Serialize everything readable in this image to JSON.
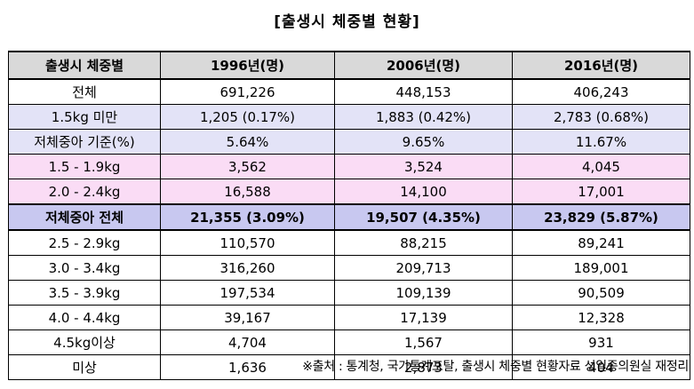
{
  "title": "[출생시 체중별 현황]",
  "table": {
    "headers": [
      "출생시 체중별",
      "1996년(명)",
      "2006년(명)",
      "2016년(명)"
    ],
    "rows": [
      {
        "label": "전체",
        "values": [
          "691,226",
          "448,153",
          "406,243"
        ],
        "style": "plain"
      },
      {
        "label": "1.5kg 미만",
        "values": [
          "1,205 (0.17%)",
          "1,883 (0.42%)",
          "2,783 (0.68%)"
        ],
        "style": "lav"
      },
      {
        "label": "저체중아 기준(%)",
        "values": [
          "5.64%",
          "9.65%",
          "11.67%"
        ],
        "style": "lav"
      },
      {
        "label": "1.5 - 1.9kg",
        "values": [
          "3,562",
          "3,524",
          "4,045"
        ],
        "style": "pink"
      },
      {
        "label": "2.0 - 2.4kg",
        "values": [
          "16,588",
          "14,100",
          "17,001"
        ],
        "style": "pink"
      },
      {
        "label": "저체중아 전체",
        "values": [
          "21,355 (3.09%)",
          "19,507 (4.35%)",
          "23,829 (5.87%)"
        ],
        "style": "total"
      },
      {
        "label": "2.5 - 2.9kg",
        "values": [
          "110,570",
          "88,215",
          "89,241"
        ],
        "style": "plain"
      },
      {
        "label": "3.0 - 3.4kg",
        "values": [
          "316,260",
          "209,713",
          "189,001"
        ],
        "style": "plain"
      },
      {
        "label": "3.5 - 3.9kg",
        "values": [
          "197,534",
          "109,139",
          "90,509"
        ],
        "style": "plain"
      },
      {
        "label": "4.0 - 4.4kg",
        "values": [
          "39,167",
          "17,139",
          "12,328"
        ],
        "style": "plain"
      },
      {
        "label": "4.5kg이상",
        "values": [
          "4,704",
          "1,567",
          "931"
        ],
        "style": "plain"
      },
      {
        "label": "미상",
        "values": [
          "1,636",
          "2,873",
          "404"
        ],
        "style": "plain"
      }
    ]
  },
  "source": "※출처 : 통계청, 국가통계포탈, 출생시 체중별 현황자료 성일종의원실 재정리",
  "colors": {
    "header_bg": "#d9d9d9",
    "lavender_row": "#e3e3f7",
    "pink_row": "#fadcf5",
    "total_row": "#c8c8f0"
  }
}
